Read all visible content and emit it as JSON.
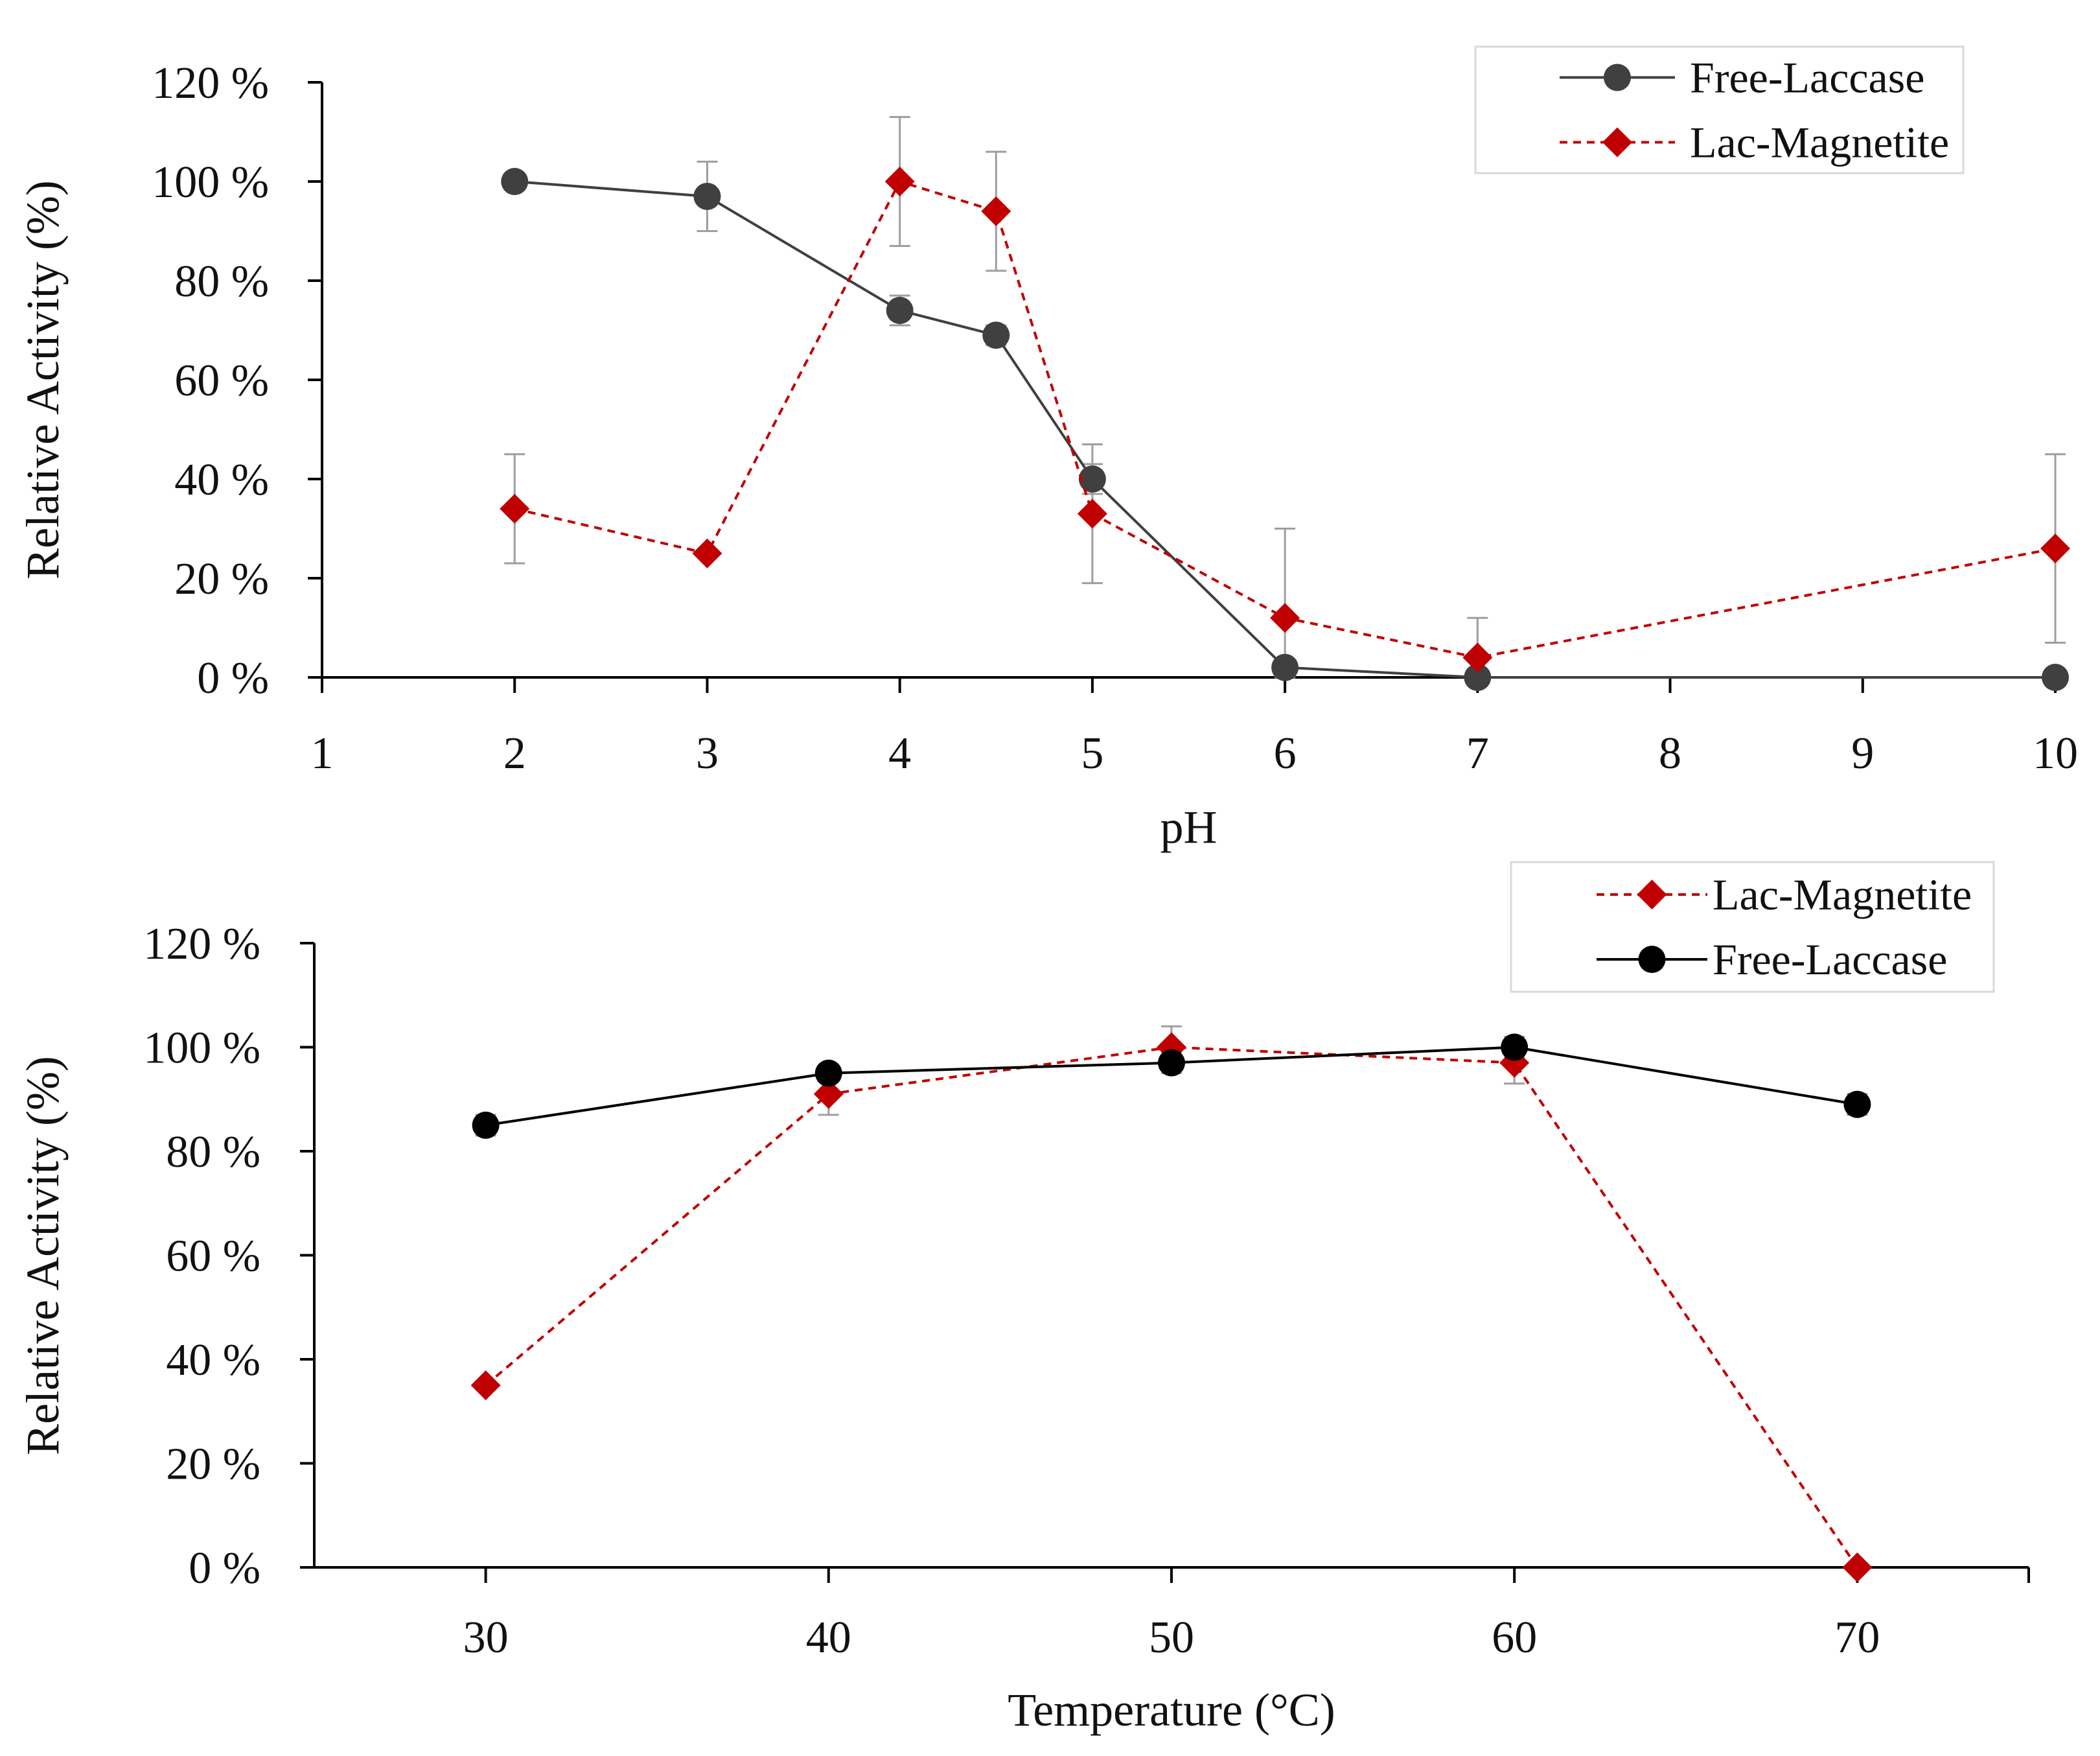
{
  "colors": {
    "free_laccase_ph": "#404040",
    "free_laccase_temp": "#000000",
    "lac_magnetite": "#c00000",
    "axis": "#000000",
    "error_bar": "#9e9e9e",
    "legend_border": "#d9d9d9"
  },
  "chart_data": [
    {
      "type": "line",
      "title": "",
      "xlabel": "pH",
      "ylabel": "Relative Activity (%)",
      "xlim": [
        1,
        10
      ],
      "ylim": [
        0,
        120
      ],
      "xticks": [
        1,
        2,
        3,
        4,
        5,
        6,
        7,
        8,
        9,
        10
      ],
      "xtick_labels": [
        "1",
        "2",
        "3",
        "4",
        "5",
        "6",
        "7",
        "8",
        "9",
        "10"
      ],
      "yticks": [
        0,
        20,
        40,
        60,
        80,
        100,
        120
      ],
      "ytick_labels": [
        "0 %",
        "20 %",
        "40 %",
        "60 %",
        "80 %",
        "100 %",
        "120 %"
      ],
      "grid": false,
      "legend_position": "top-right",
      "legend_order": [
        "Free-Laccase",
        "Lac-Magnetite"
      ],
      "series": [
        {
          "name": "Free-Laccase",
          "marker": "circle",
          "line_style": "solid",
          "color_key": "free_laccase_ph",
          "x": [
            2,
            3,
            4,
            4.5,
            5,
            6,
            7,
            10
          ],
          "y": [
            100,
            97,
            74,
            69,
            40,
            2,
            0,
            0
          ],
          "error": [
            1,
            7,
            3,
            2,
            3,
            1,
            0,
            0
          ]
        },
        {
          "name": "Lac-Magnetite",
          "marker": "diamond",
          "line_style": "dashed",
          "color_key": "lac_magnetite",
          "x": [
            2,
            3,
            4,
            4.5,
            5,
            6,
            7,
            10
          ],
          "y": [
            34,
            25,
            100,
            94,
            33,
            12,
            4,
            26
          ],
          "error": [
            11,
            0,
            13,
            12,
            14,
            18,
            8,
            19
          ]
        }
      ]
    },
    {
      "type": "line",
      "title": "",
      "xlabel": "Temperature (°C)",
      "ylabel": "Relative Activity (%)",
      "xlim": [
        25,
        75
      ],
      "ylim": [
        0,
        120
      ],
      "xticks": [
        30,
        40,
        50,
        60,
        70
      ],
      "xtick_labels": [
        "30",
        "40",
        "50",
        "60",
        "70"
      ],
      "yticks": [
        0,
        20,
        40,
        60,
        80,
        100,
        120
      ],
      "ytick_labels": [
        "0 %",
        "20 %",
        "40 %",
        "60 %",
        "80 %",
        "100 %",
        "120 %"
      ],
      "grid": false,
      "legend_position": "top-right",
      "legend_order": [
        "Lac-Magnetite",
        "Free-Laccase"
      ],
      "series": [
        {
          "name": "Lac-Magnetite",
          "marker": "diamond",
          "line_style": "dashed",
          "color_key": "lac_magnetite",
          "x": [
            30,
            40,
            50,
            60,
            70
          ],
          "y": [
            35,
            91,
            100,
            97,
            0
          ],
          "error": [
            0,
            4,
            4,
            4,
            0
          ]
        },
        {
          "name": "Free-Laccase",
          "marker": "circle",
          "line_style": "solid",
          "color_key": "free_laccase_temp",
          "x": [
            30,
            40,
            50,
            60,
            70
          ],
          "y": [
            85,
            95,
            97,
            100,
            89
          ],
          "error": [
            2,
            1,
            2,
            2,
            2
          ]
        }
      ]
    }
  ]
}
